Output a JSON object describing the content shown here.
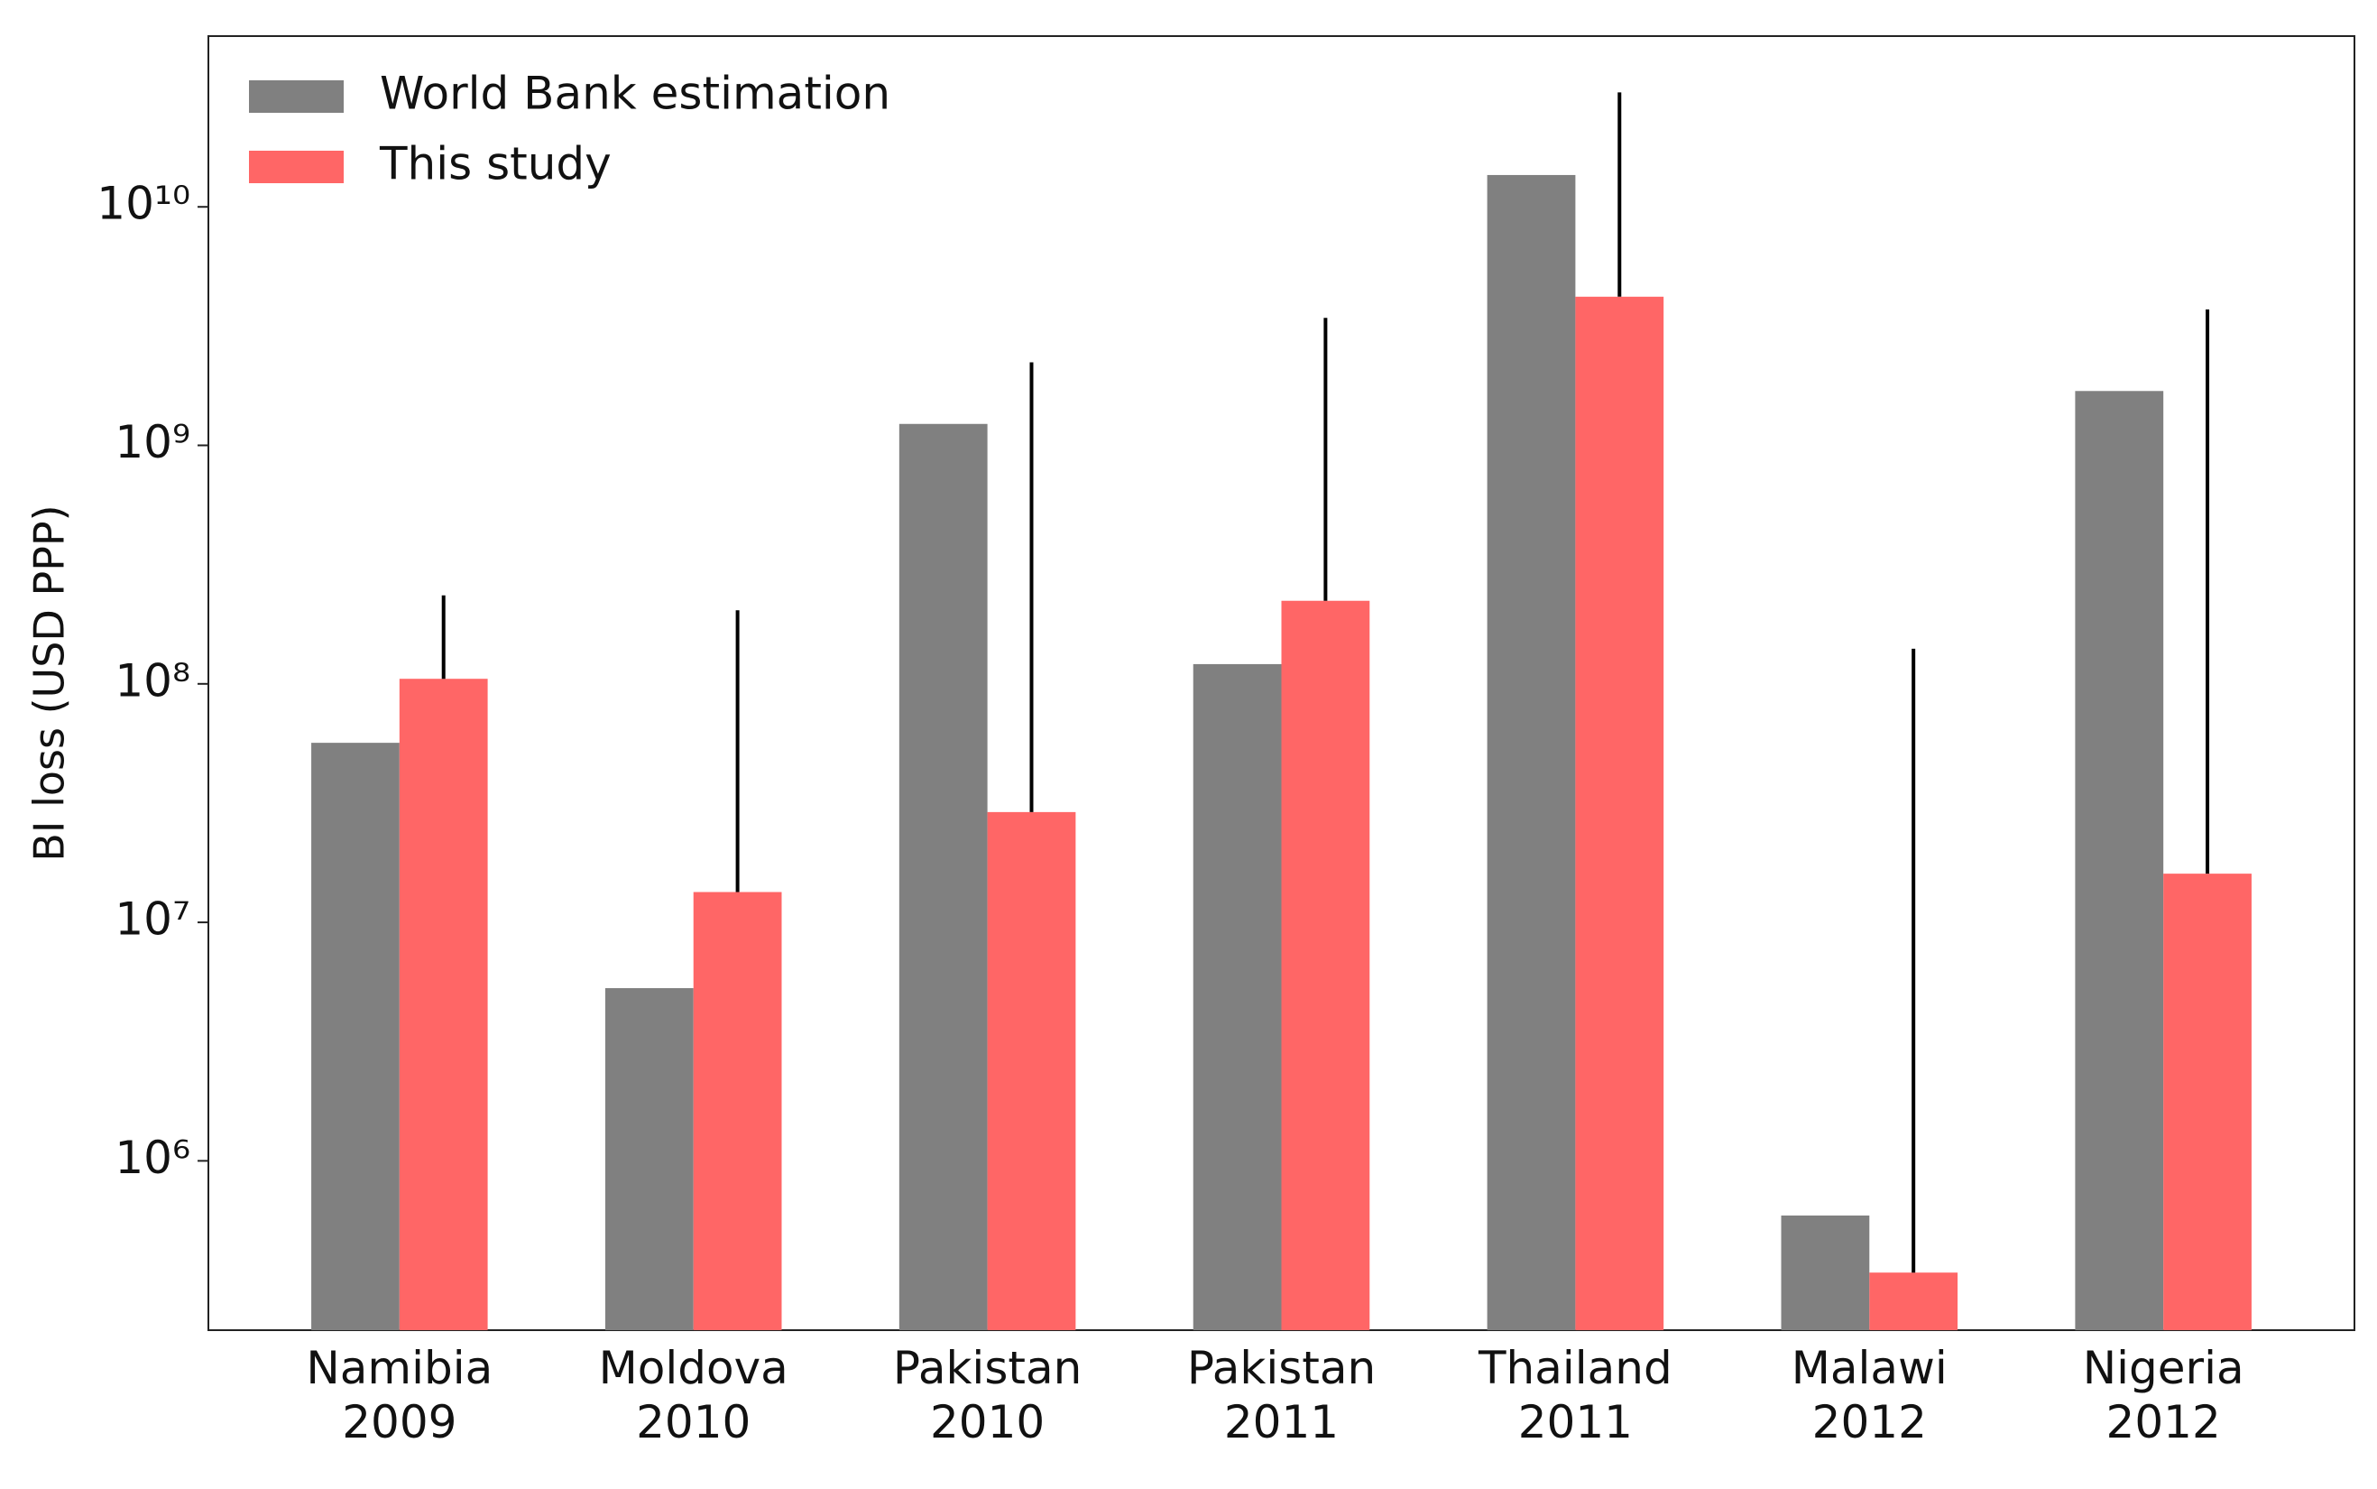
{
  "chart_data": {
    "type": "bar",
    "y_label": "BI loss (USD PPP)",
    "categories": [
      [
        "Namibia",
        "2009"
      ],
      [
        "Moldova",
        "2010"
      ],
      [
        "Pakistan",
        "2010"
      ],
      [
        "Pakistan",
        "2011"
      ],
      [
        "Thailand",
        "2011"
      ],
      [
        "Malawi",
        "2012"
      ],
      [
        "Nigeria",
        "2012"
      ]
    ],
    "series": [
      {
        "name": "World Bank estimation",
        "color": "#808080",
        "values": [
          56600000,
          5300000,
          1230000000,
          121000000,
          13600000000,
          590000,
          1690000000
        ]
      },
      {
        "name": "This study",
        "color": "#ff6666",
        "values": [
          105000000,
          13400000,
          29000000,
          223000000,
          4200000000,
          340000,
          16000000
        ],
        "errors": [
          130000000,
          190000000,
          2200000000,
          3200000000,
          26000000000,
          140000000,
          3700000000
        ]
      }
    ],
    "y_scale": "log",
    "ylim": [
      195000,
      52000000000
    ],
    "yticks": [
      {
        "value": 1000000,
        "label": "10⁶"
      },
      {
        "value": 10000000,
        "label": "10⁷"
      },
      {
        "value": 100000000,
        "label": "10⁸"
      },
      {
        "value": 1000000000,
        "label": "10⁹"
      },
      {
        "value": 10000000000,
        "label": "10¹⁰"
      }
    ],
    "legend": "upper left",
    "error_color": "#000000"
  }
}
